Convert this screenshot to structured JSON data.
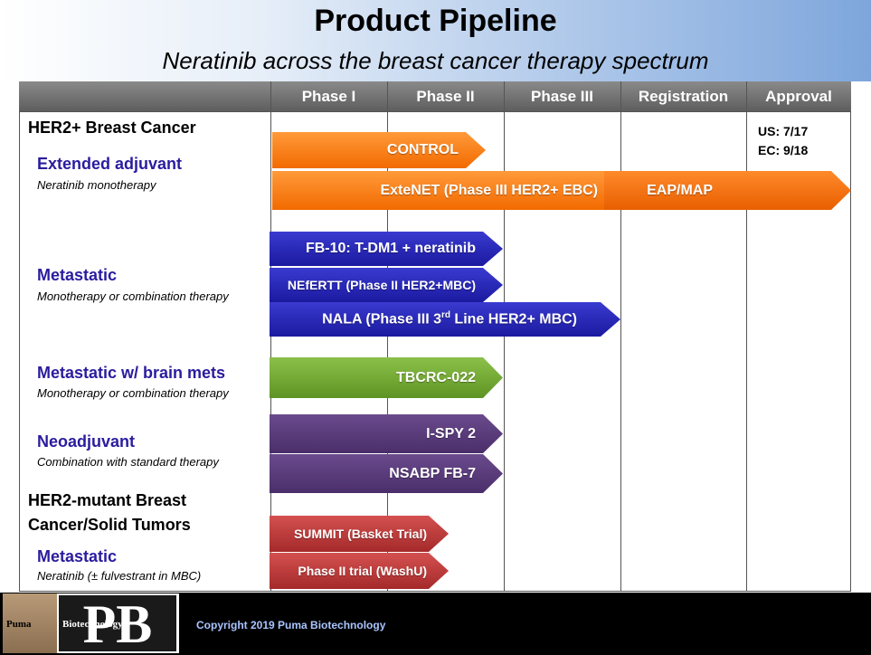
{
  "header": {
    "title": "Product Pipeline",
    "subtitle": "Neratinib across the breast cancer therapy spectrum"
  },
  "columns": [
    "Phase I",
    "Phase II",
    "Phase III",
    "Registration",
    "Approval"
  ],
  "labels": {
    "her2_bc": "HER2+ Breast Cancer",
    "ext_adj": "Extended adjuvant",
    "ext_adj_desc": "Neratinib monotherapy",
    "metastatic": "Metastatic",
    "metastatic_desc": "Monotherapy or combination therapy",
    "brain": "Metastatic w/ brain mets",
    "brain_desc": "Monotherapy or combination therapy",
    "neoadj": "Neoadjuvant",
    "neoadj_desc": "Combination with standard therapy",
    "mutant_line1": "HER2-mutant Breast",
    "mutant_line2": "Cancer/Solid Tumors",
    "mutant_metastatic": "Metastatic",
    "mutant_desc": "Neratinib (± fulvestrant in MBC)"
  },
  "approval": {
    "us": "US:  7/17",
    "ec": "EC:  9/18"
  },
  "bars": {
    "control": "CONTROL",
    "extenet": "ExteNET (Phase III HER2+ EBC)",
    "eap": "EAP/MAP",
    "fb10": "FB-10: T-DM1 + neratinib",
    "nefertt": "NEfERTT (Phase II HER2+MBC)",
    "nala_a": "NALA (Phase III 3",
    "nala_sup": "rd",
    "nala_b": " Line HER2+ MBC)",
    "tbcrc": "TBCRC-022",
    "ispy": "I-SPY 2",
    "nsabp": "NSABP FB-7",
    "summit": "SUMMIT (Basket Trial)",
    "washu": "Phase II trial (WashU)"
  },
  "footer": {
    "copyright": "Copyright 2019 Puma Biotechnology",
    "logo_word1": "Puma",
    "logo_word2": "Biotechnology",
    "logo_mark": "PB"
  },
  "colors": {
    "orange": "#f26a00",
    "blue": "#1a1aa0",
    "green": "#5e9424",
    "purple": "#4a2e6a",
    "red": "#a52a2a",
    "label_blue": "#2a1c9e"
  }
}
